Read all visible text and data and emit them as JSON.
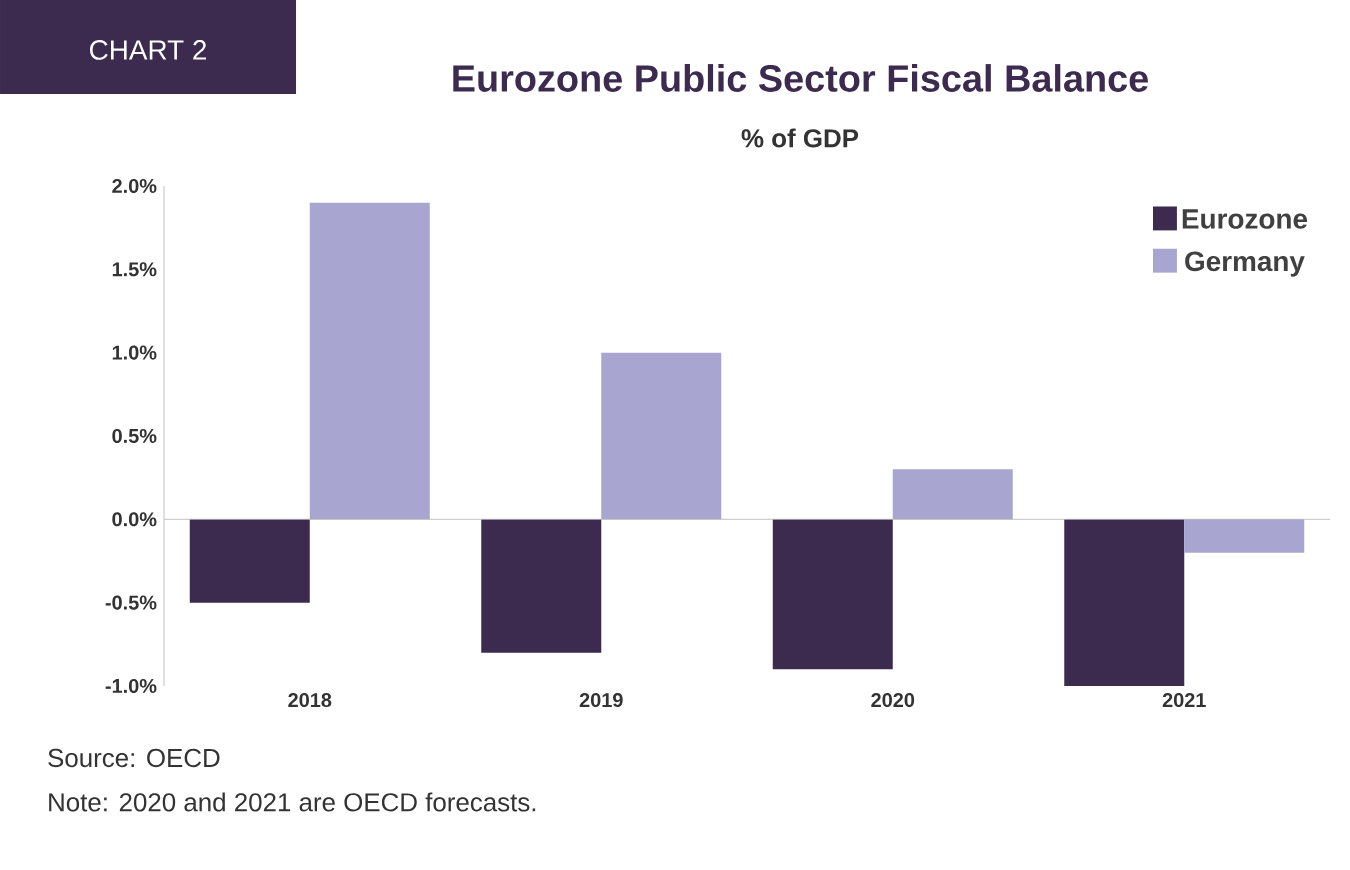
{
  "chart_data": {
    "type": "bar",
    "title": "Eurozone Public Sector Fiscal Balance",
    "subtitle": "% of GDP",
    "categories": [
      "2018",
      "2019",
      "2020",
      "2021"
    ],
    "series": [
      {
        "name": "Eurozone",
        "color": "#3d2b4f",
        "values": [
          -0.5,
          -0.8,
          -0.9,
          -1.0
        ]
      },
      {
        "name": "Germany",
        "color": "#a9a5d1",
        "values": [
          1.9,
          1.0,
          0.3,
          -0.2
        ]
      }
    ],
    "ylim": [
      -1.0,
      2.0
    ],
    "yticks": [
      {
        "value": -1.0,
        "label": "-1.0%"
      },
      {
        "value": -0.5,
        "label": "-0.5%"
      },
      {
        "value": 0.0,
        "label": "0.0%"
      },
      {
        "value": 0.5,
        "label": "0.5%"
      },
      {
        "value": 1.0,
        "label": "1.0%"
      },
      {
        "value": 1.5,
        "label": "1.5%"
      },
      {
        "value": 2.0,
        "label": "2.0%"
      }
    ],
    "legend": "top right",
    "annotations": [
      "CHART 2",
      "Source: OECD",
      "Note: 2020 and 2021 are OECD forecasts."
    ]
  }
}
